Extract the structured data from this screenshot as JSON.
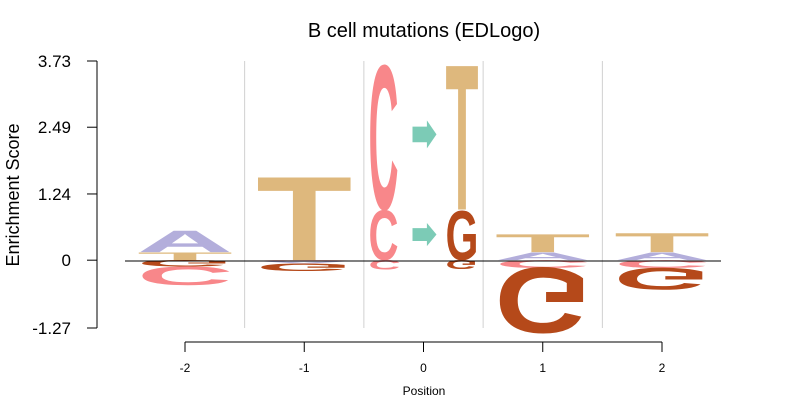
{
  "chart_data": {
    "type": "sequence-logo",
    "title": "B cell mutations (EDLogo)",
    "xlabel": "Position",
    "ylabel": "Enrichment Score",
    "ylim": [
      -1.27,
      3.73
    ],
    "yticks": [
      "3.73",
      "2.49",
      "1.24",
      "0",
      "-1.27"
    ],
    "ytick_values": [
      3.73,
      2.49,
      1.24,
      0,
      -1.27
    ],
    "xticks": [
      "-2",
      "-1",
      "0",
      "1",
      "2"
    ],
    "xtick_values": [
      -2,
      -1,
      0,
      1,
      2
    ],
    "colors": {
      "A": "#b3aedb",
      "T": "#deb87d",
      "C": "#f8878a",
      "G": "#b5491a",
      "arrow": "#7ccbb6"
    },
    "columns": [
      {
        "position": -2,
        "letters": [
          {
            "base": "A",
            "value": 0.42
          },
          {
            "base": "T",
            "value": 0.15
          },
          {
            "base": "G",
            "value": -0.12
          },
          {
            "base": "C",
            "value": -0.36
          }
        ]
      },
      {
        "position": -1,
        "letters": [
          {
            "base": "T",
            "value": 1.62
          },
          {
            "base": "C",
            "value": -0.02
          },
          {
            "base": "A",
            "value": -0.04
          },
          {
            "base": "G",
            "value": -0.15
          }
        ]
      },
      {
        "position": 0,
        "substitutions": [
          {
            "from": "C",
            "to": "T",
            "from_value": 2.79,
            "to_value": 2.81
          },
          {
            "from": "C",
            "to": "G",
            "from_value": 0.96,
            "to_value": 0.95
          }
        ],
        "letters_below": [
          {
            "base": "C",
            "value": -0.18
          },
          {
            "base": "G",
            "value": -0.18
          }
        ]
      },
      {
        "position": 1,
        "letters": [
          {
            "base": "T",
            "value": 0.35
          },
          {
            "base": "A",
            "value": 0.15
          },
          {
            "base": "C",
            "value": -0.15
          },
          {
            "base": "G",
            "value": -1.27
          }
        ]
      },
      {
        "position": 2,
        "letters": [
          {
            "base": "T",
            "value": 0.37
          },
          {
            "base": "A",
            "value": 0.15
          },
          {
            "base": "C",
            "value": -0.15
          },
          {
            "base": "G",
            "value": -0.42
          }
        ]
      }
    ]
  }
}
